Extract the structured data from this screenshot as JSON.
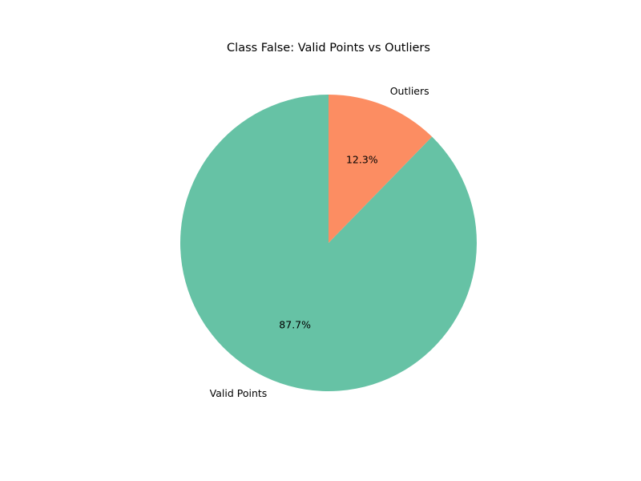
{
  "chart_data": {
    "type": "pie",
    "title": "Class False: Valid Points vs Outliers",
    "categories": [
      "Valid Points",
      "Outliers"
    ],
    "values": [
      87.7,
      12.3
    ],
    "percent_labels": [
      "87.7%",
      "12.3%"
    ],
    "colors": [
      "#66c2a5",
      "#fc8d62"
    ],
    "start_angle_deg": 90,
    "direction": "counterclockwise",
    "legend": "none"
  }
}
